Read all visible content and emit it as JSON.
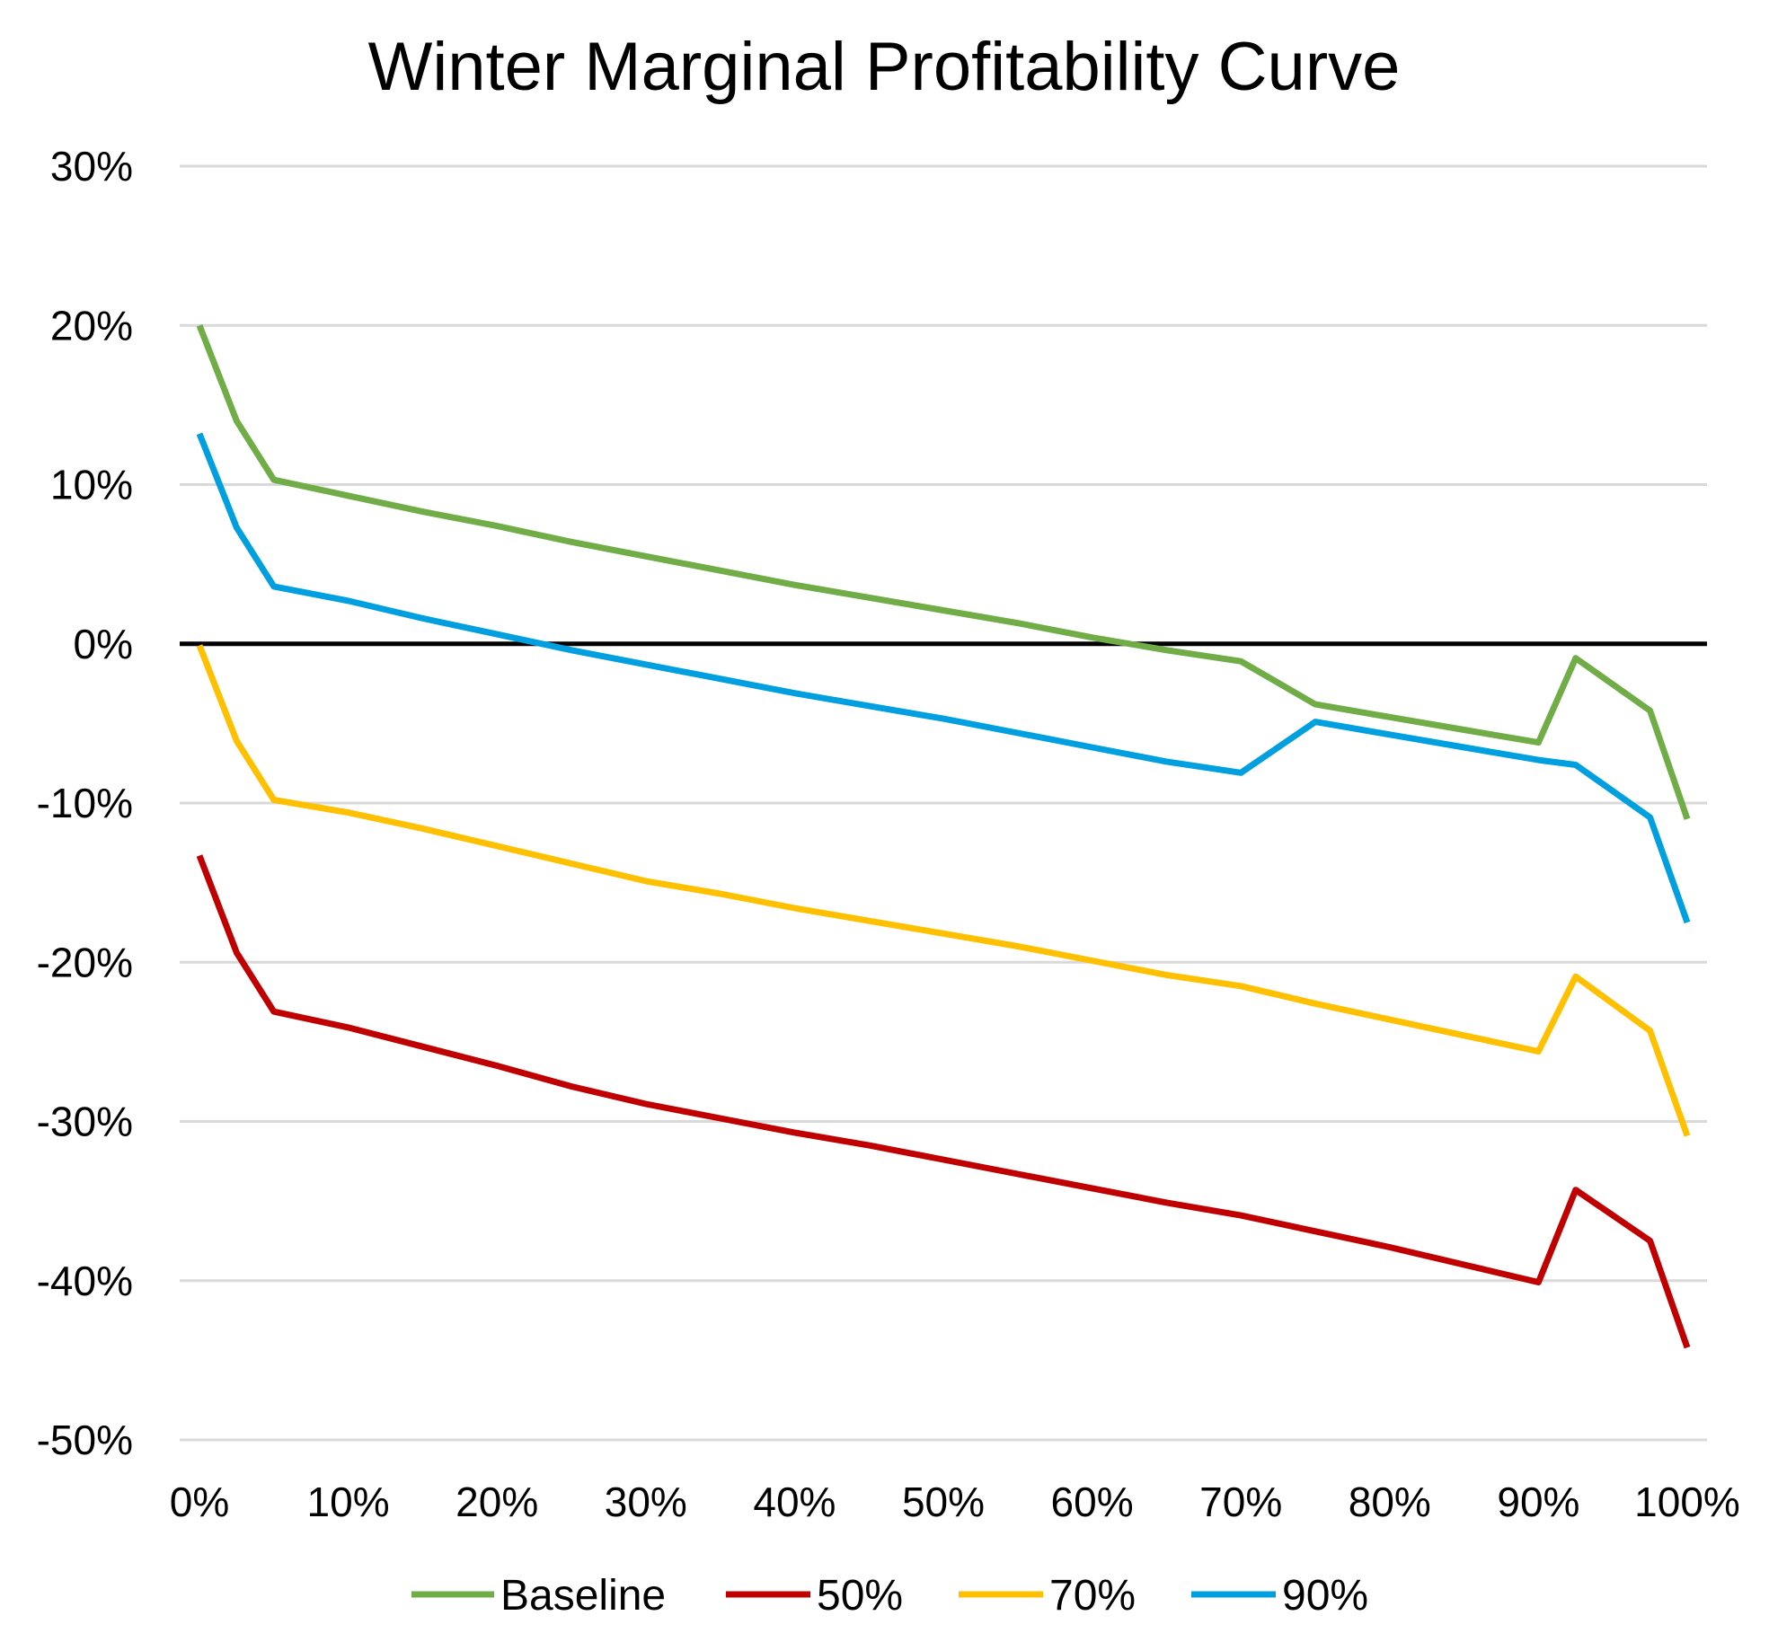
{
  "chart_data": {
    "type": "line",
    "title": "Winter Marginal Profitability Curve",
    "xlabel": "",
    "ylabel": "",
    "xlim": [
      0,
      100
    ],
    "ylim": [
      -50,
      30
    ],
    "x_ticks": [
      "0%",
      "10%",
      "20%",
      "30%",
      "40%",
      "50%",
      "60%",
      "70%",
      "80%",
      "90%",
      "100%"
    ],
    "y_ticks": [
      "30%",
      "20%",
      "10%",
      "0%",
      "-10%",
      "-20%",
      "-30%",
      "-40%",
      "-50%"
    ],
    "x_tick_values": [
      0,
      10,
      20,
      30,
      40,
      50,
      60,
      70,
      80,
      90,
      100
    ],
    "y_tick_values": [
      30,
      20,
      10,
      0,
      -10,
      -20,
      -30,
      -40,
      -50
    ],
    "grid": true,
    "zero_line": true,
    "legend_position": "bottom",
    "x": [
      0,
      2.5,
      5,
      10,
      15,
      20,
      25,
      30,
      35,
      40,
      45,
      50,
      55,
      60,
      65,
      70,
      75,
      80,
      85,
      90,
      92.5,
      97.5,
      100
    ],
    "series": [
      {
        "name": "Baseline",
        "color": "#70AD47",
        "values": [
          20,
          14,
          10.3,
          9.3,
          8.3,
          7.4,
          6.4,
          5.5,
          4.6,
          3.7,
          2.9,
          2.1,
          1.3,
          0.4,
          -0.4,
          -1.1,
          -3.8,
          -4.6,
          -5.4,
          -6.2,
          -0.9,
          -4.2,
          -11
        ]
      },
      {
        "name": "50%",
        "color": "#C00000",
        "values": [
          -13.3,
          -19.4,
          -23.1,
          -24.1,
          -25.3,
          -26.5,
          -27.8,
          -28.9,
          -29.8,
          -30.7,
          -31.5,
          -32.4,
          -33.3,
          -34.2,
          -35.1,
          -35.9,
          -36.9,
          -37.9,
          -39,
          -40.1,
          -34.3,
          -37.5,
          -44.2
        ]
      },
      {
        "name": "70%",
        "color": "#FFC000",
        "values": [
          -0.1,
          -6.1,
          -9.8,
          -10.6,
          -11.6,
          -12.7,
          -13.8,
          -14.9,
          -15.7,
          -16.6,
          -17.4,
          -18.2,
          -19,
          -19.9,
          -20.8,
          -21.5,
          -22.6,
          -23.6,
          -24.6,
          -25.6,
          -20.9,
          -24.3,
          -30.9
        ]
      },
      {
        "name": "90%",
        "color": "#00A0E0",
        "values": [
          13.2,
          7.3,
          3.6,
          2.7,
          1.6,
          0.6,
          -0.4,
          -1.3,
          -2.2,
          -3.1,
          -3.9,
          -4.7,
          -5.6,
          -6.5,
          -7.4,
          -8.1,
          -4.9,
          -5.7,
          -6.5,
          -7.3,
          -7.6,
          -10.9,
          -17.5
        ]
      }
    ]
  }
}
